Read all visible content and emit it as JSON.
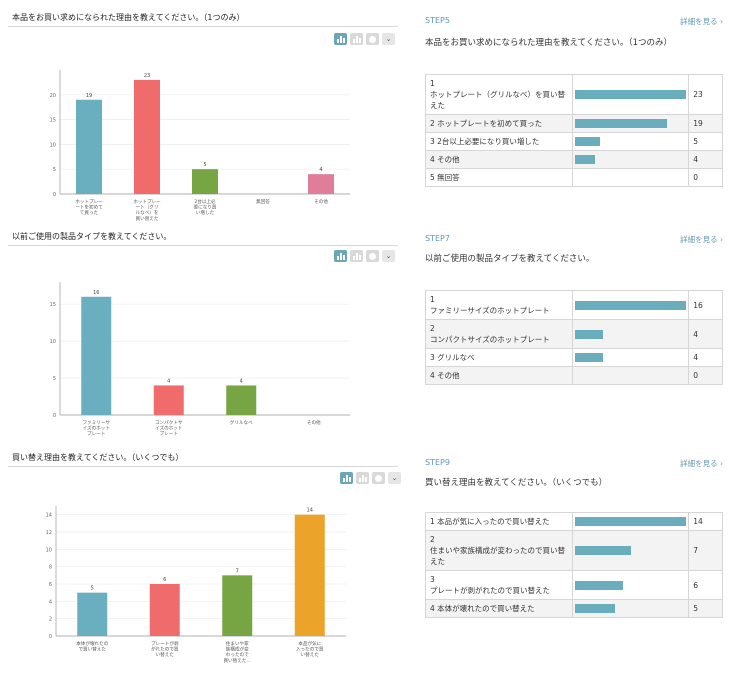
{
  "colors": {
    "teal": "#6aafc0",
    "red": "#f06b6b",
    "green": "#78a543",
    "pink": "#e07e99",
    "orange": "#eba32a",
    "accent": "#5e9bb0"
  },
  "chart_buttons": [
    {
      "icon": "bar-chart-icon",
      "active": true
    },
    {
      "icon": "stacked-bar-icon",
      "active": false
    },
    {
      "icon": "pie-chart-icon",
      "active": false
    },
    {
      "icon": "chevron-down-icon",
      "active": false
    }
  ],
  "more_link": "詳細を見る",
  "charts": [
    {
      "title": "本品をお買い求めになられた理由を教えてください。（1つのみ）",
      "chart_data": {
        "type": "bar",
        "categories": [
          "ホットプレー\nートを初めて\nて買った",
          "ホットプレー\nート（グリ\nルなべ）を\n買い替えた",
          "2台以上必\n要になり買\nい増した",
          "無回答",
          "その他"
        ],
        "values": [
          19,
          23,
          5,
          0,
          4
        ],
        "colors": [
          "#6aafc0",
          "#f06b6b",
          "#78a543",
          "#78a543",
          "#e07e99"
        ],
        "yticks": [
          0,
          5,
          10,
          15,
          20
        ],
        "ylim": [
          0,
          25
        ]
      }
    },
    {
      "title": "以前ご使用の製品タイプを教えてください。",
      "chart_data": {
        "type": "bar",
        "categories": [
          "ファミリーサ\nイズのホット\nプレート",
          "コンパクトサ\nイズのホット\nプレート",
          "グリルなべ",
          "その他"
        ],
        "values": [
          16,
          4,
          4,
          0
        ],
        "colors": [
          "#6aafc0",
          "#f06b6b",
          "#78a543",
          "#e07e99"
        ],
        "yticks": [
          0,
          5,
          10,
          15
        ],
        "ylim": [
          0,
          18
        ]
      }
    },
    {
      "title": "買い替え理由を教えてください。（いくつでも）",
      "chart_data": {
        "type": "bar",
        "categories": [
          "本体が壊れたの\nで買い替えた",
          "プレートが剥\nがれたので買\nい替えた",
          "住まいや家\n族構成が変\nわったので\n買い替えた…",
          "本品が気に\n入ったので買\nい替えた"
        ],
        "values": [
          5,
          6,
          7,
          14
        ],
        "colors": [
          "#6aafc0",
          "#f06b6b",
          "#78a543",
          "#eba32a"
        ],
        "yticks": [
          0,
          2,
          4,
          6,
          8,
          10,
          12,
          14
        ],
        "ylim": [
          0,
          15
        ]
      }
    }
  ],
  "steps": [
    {
      "step": "STEP5",
      "question": "本品をお買い求めになられた理由を教えてください。（1つのみ）",
      "max": 23,
      "rows": [
        {
          "label": "1\nホットプレート（グリルなべ）を買い替えた",
          "count": 23
        },
        {
          "label": "2 ホットプレートを初めて買った",
          "count": 19
        },
        {
          "label": "3 2台以上必要になり買い増した",
          "count": 5
        },
        {
          "label": "4 その他",
          "count": 4
        },
        {
          "label": "5 無回答",
          "count": 0
        }
      ]
    },
    {
      "step": "STEP7",
      "question": "以前ご使用の製品タイプを教えてください。",
      "max": 16,
      "rows": [
        {
          "label": "1\nファミリーサイズのホットプレート",
          "count": 16
        },
        {
          "label": "2\nコンパクトサイズのホットプレート",
          "count": 4
        },
        {
          "label": "3 グリルなべ",
          "count": 4
        },
        {
          "label": "4 その他",
          "count": 0
        }
      ]
    },
    {
      "step": "STEP9",
      "question": "買い替え理由を教えてください。（いくつでも）",
      "max": 14,
      "rows": [
        {
          "label": "1 本品が気に入ったので買い替えた",
          "count": 14
        },
        {
          "label": "2\n住まいや家族構成が変わったので買い替えた",
          "count": 7
        },
        {
          "label": "3\nプレートが剥がれたので買い替えた",
          "count": 6
        },
        {
          "label": "4 本体が壊れたので買い替えた",
          "count": 5
        }
      ]
    }
  ]
}
